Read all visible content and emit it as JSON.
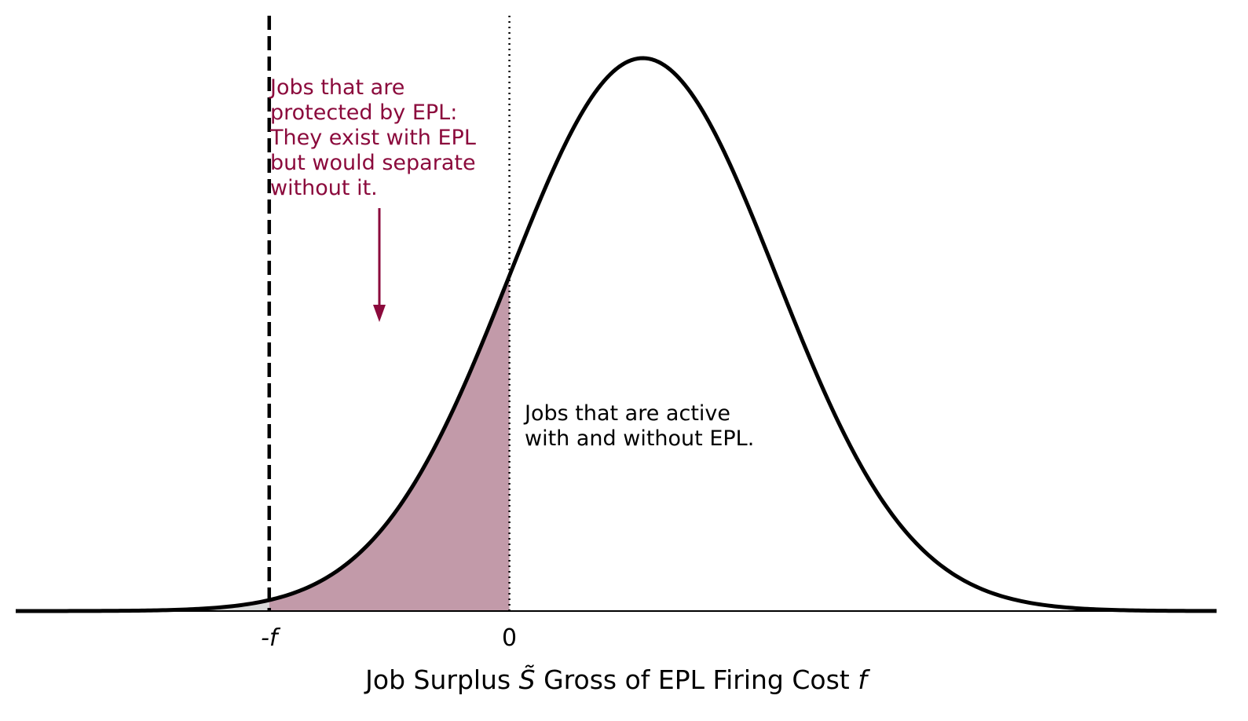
{
  "chart_data": {
    "type": "area",
    "distribution": "normal",
    "mean": 1,
    "sd": 1,
    "xlim": [
      -3.7,
      5.3
    ],
    "ylim": [
      0,
      0.42
    ],
    "markers": [
      {
        "name": "neg-f",
        "x": -1.8,
        "tick_label": "-f",
        "style": "dashed"
      },
      {
        "name": "zero",
        "x": 0,
        "tick_label": "0",
        "style": "dotted"
      }
    ],
    "regions": [
      {
        "name": "left-tail",
        "from": -3.7,
        "to": -1.8,
        "color": "#d9d9d9"
      },
      {
        "name": "protected",
        "from": -1.8,
        "to": 0,
        "color": "#c29aa9"
      }
    ],
    "xlabel": {
      "prefix": "Job Surplus ",
      "symbol": "S̃",
      "middle": " Gross of EPL Firing Cost ",
      "var": "f"
    },
    "annotations": [
      {
        "name": "protected-jobs",
        "text": "Jobs that are\nprotected by EPL:\nThey exist with EPL\nbut would separate\nwithout it.",
        "color": "#8b0a3c"
      },
      {
        "name": "active-jobs",
        "text": "Jobs that are active\nwith and without EPL.",
        "color": "#000000"
      }
    ],
    "grid": false,
    "legend": "none"
  },
  "colors": {
    "curve": "#000000",
    "accent": "#8b0a3c",
    "tail_fill": "#d9d9d9",
    "protected_fill": "#c29aa9"
  }
}
